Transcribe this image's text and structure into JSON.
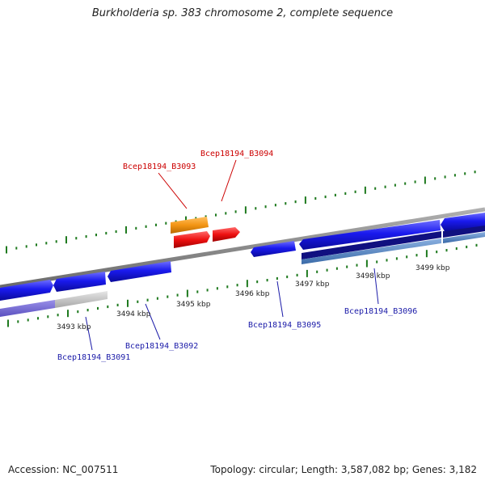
{
  "title": "Burkholderia sp. 383 chromosome 2, complete sequence",
  "footer": {
    "accession": "Accession: NC_007511",
    "summary": "Topology: circular; Length: 3,587,082 bp; Genes: 3,182"
  },
  "colors": {
    "cds": "#1515ee",
    "highlight_orange": "#f39514",
    "highlight_red": "#ee1111",
    "backbone": "#8a8a8a",
    "tick": "#1f7a1f",
    "label_blue": "#1a1aa8",
    "label_red": "#cc0000"
  },
  "scale": {
    "ticks": [
      "3493 kbp",
      "3494 kbp",
      "3495 kbp",
      "3496 kbp",
      "3497 kbp",
      "3498 kbp",
      "3499 kbp"
    ]
  },
  "genes": {
    "top": [
      "Bcep18194_B3093",
      "Bcep18194_B3094"
    ],
    "bottom": [
      "Bcep18194_B3091",
      "Bcep18194_B3092",
      "Bcep18194_B3095",
      "Bcep18194_B3096"
    ]
  }
}
